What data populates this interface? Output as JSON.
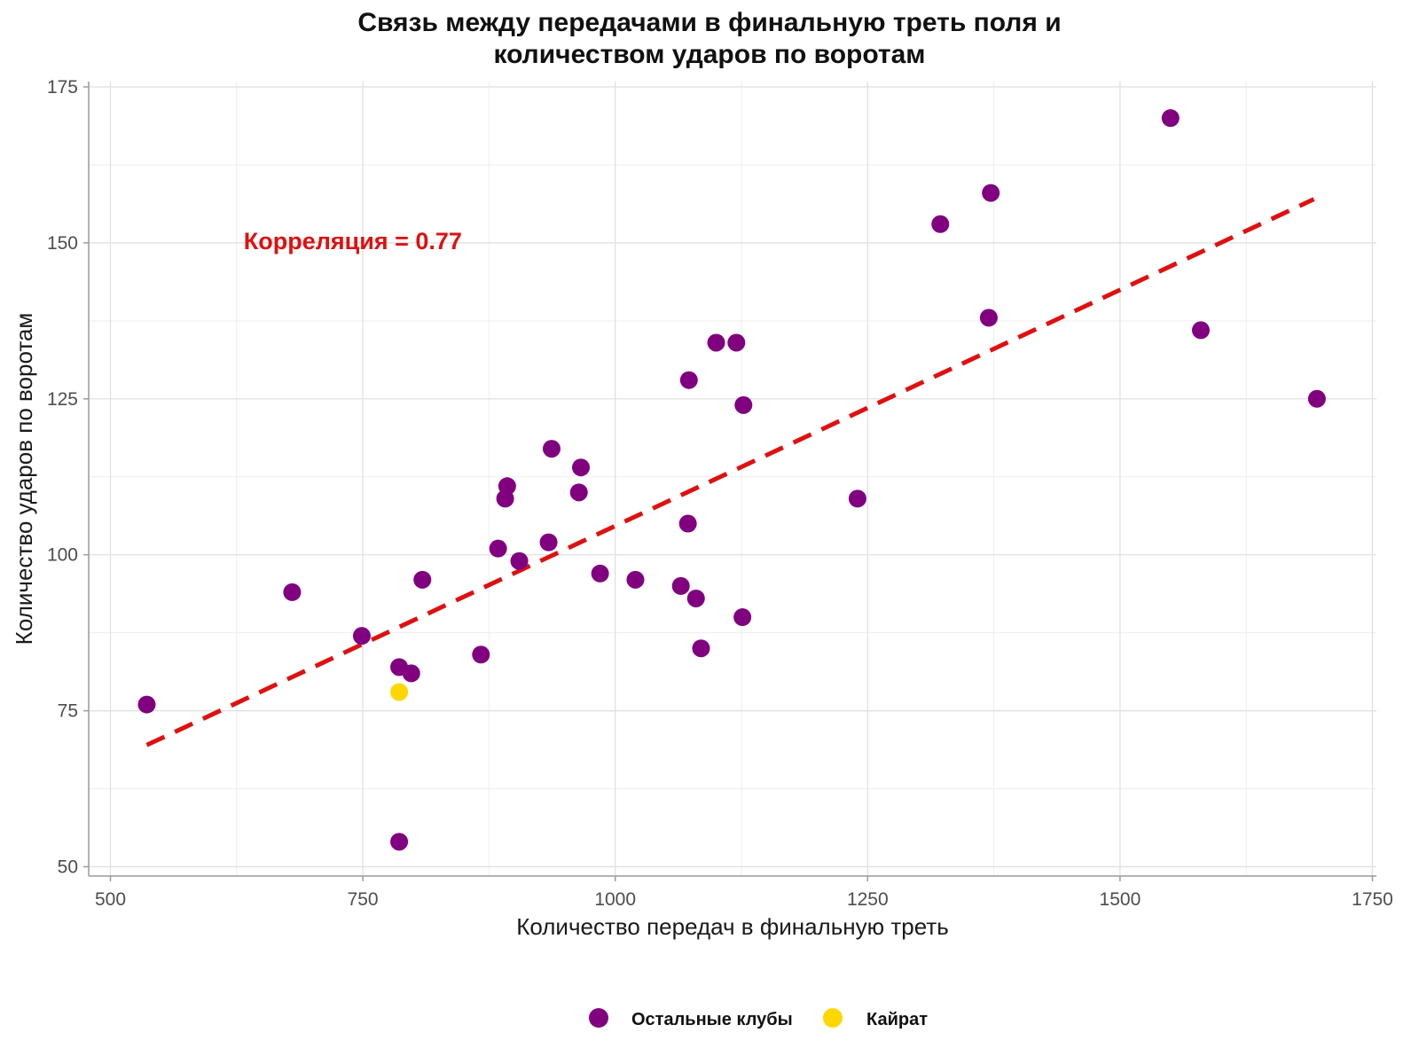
{
  "chart_data": {
    "type": "scatter",
    "title_lines": [
      "Связь между передачами в финальную треть поля и",
      "количеством ударов по воротам"
    ],
    "xlabel": "Количество передач в финальную треть",
    "ylabel": "Количество ударов по воротам",
    "xlim": [
      500,
      1750
    ],
    "ylim": [
      50,
      175
    ],
    "x_ticks": [
      500,
      750,
      1000,
      1250,
      1500,
      1750
    ],
    "y_ticks": [
      50,
      75,
      100,
      125,
      150,
      175
    ],
    "grid": true,
    "annotation": {
      "text": "Корреляция = 0.77",
      "x": 632,
      "y": 149,
      "color": "#E01010"
    },
    "trendline": {
      "style": "dashed",
      "color": "#E01010",
      "x": [
        536,
        1692
      ],
      "y": [
        69.5,
        157
      ]
    },
    "legend": {
      "position": "bottom",
      "entries": [
        {
          "label": "Остальные клубы",
          "color": "#800080"
        },
        {
          "label": "Кайрат",
          "color": "#FFD700"
        }
      ]
    },
    "series": [
      {
        "name": "Остальные клубы",
        "color": "#800080",
        "points": [
          {
            "x": 536,
            "y": 76
          },
          {
            "x": 680,
            "y": 94
          },
          {
            "x": 749,
            "y": 87
          },
          {
            "x": 786,
            "y": 82
          },
          {
            "x": 786,
            "y": 54
          },
          {
            "x": 798,
            "y": 81
          },
          {
            "x": 809,
            "y": 96
          },
          {
            "x": 867,
            "y": 84
          },
          {
            "x": 884,
            "y": 101
          },
          {
            "x": 891,
            "y": 109
          },
          {
            "x": 893,
            "y": 111
          },
          {
            "x": 905,
            "y": 99
          },
          {
            "x": 934,
            "y": 102
          },
          {
            "x": 937,
            "y": 117
          },
          {
            "x": 964,
            "y": 110
          },
          {
            "x": 966,
            "y": 114
          },
          {
            "x": 985,
            "y": 97
          },
          {
            "x": 1020,
            "y": 96
          },
          {
            "x": 1065,
            "y": 95
          },
          {
            "x": 1072,
            "y": 105
          },
          {
            "x": 1073,
            "y": 128
          },
          {
            "x": 1080,
            "y": 93
          },
          {
            "x": 1085,
            "y": 85
          },
          {
            "x": 1100,
            "y": 134
          },
          {
            "x": 1120,
            "y": 134
          },
          {
            "x": 1126,
            "y": 90
          },
          {
            "x": 1127,
            "y": 124
          },
          {
            "x": 1240,
            "y": 109
          },
          {
            "x": 1322,
            "y": 153
          },
          {
            "x": 1370,
            "y": 138
          },
          {
            "x": 1372,
            "y": 158
          },
          {
            "x": 1550,
            "y": 170
          },
          {
            "x": 1580,
            "y": 136
          },
          {
            "x": 1695,
            "y": 125
          }
        ]
      },
      {
        "name": "Кайрат",
        "color": "#FFD700",
        "points": [
          {
            "x": 786,
            "y": 78
          }
        ]
      }
    ]
  }
}
